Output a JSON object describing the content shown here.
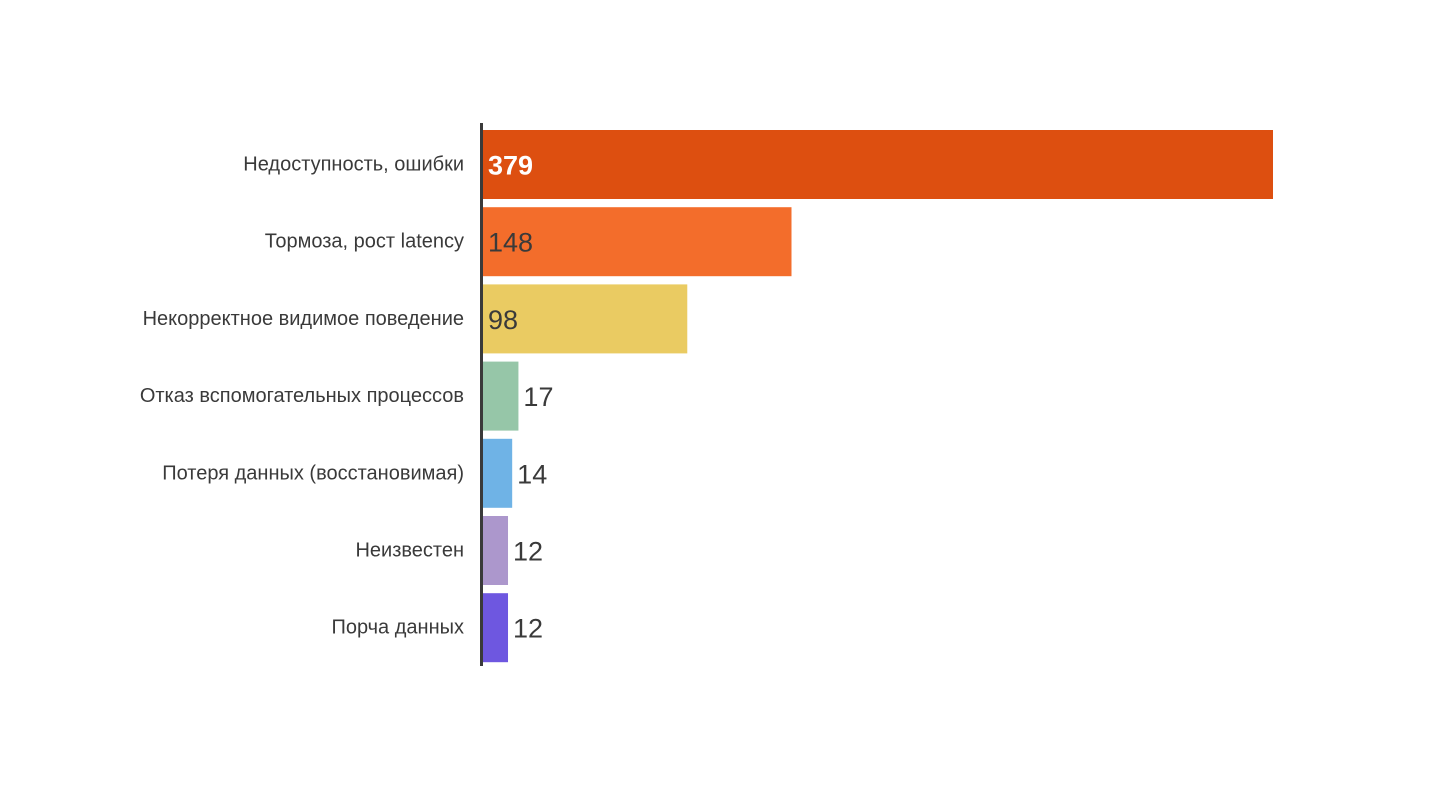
{
  "chart_data": {
    "type": "bar",
    "orientation": "horizontal",
    "categories": [
      "Недоступность, ошибки",
      "Тормоза, рост latency",
      "Некорректное видимое поведение",
      "Отказ вспомогательных процессов",
      "Потеря данных (восстановимая)",
      "Неизвестен",
      "Порча данных"
    ],
    "values": [
      379,
      148,
      98,
      17,
      14,
      12,
      12
    ],
    "value_labels": [
      "379",
      "148",
      "98",
      "17",
      "14",
      "12",
      "12"
    ],
    "colors": [
      "#dd4f10",
      "#f36d2b",
      "#eacb62",
      "#96c6a8",
      "#6fb3e6",
      "#ac97cc",
      "#6e57e0"
    ],
    "value_label_colors": [
      "#ffffff",
      "#3a3a3a",
      "#3a3a3a",
      "#3a3a3a",
      "#3a3a3a",
      "#3a3a3a",
      "#3a3a3a"
    ],
    "xlim": [
      0,
      379
    ],
    "grid": false,
    "legend": "none"
  }
}
